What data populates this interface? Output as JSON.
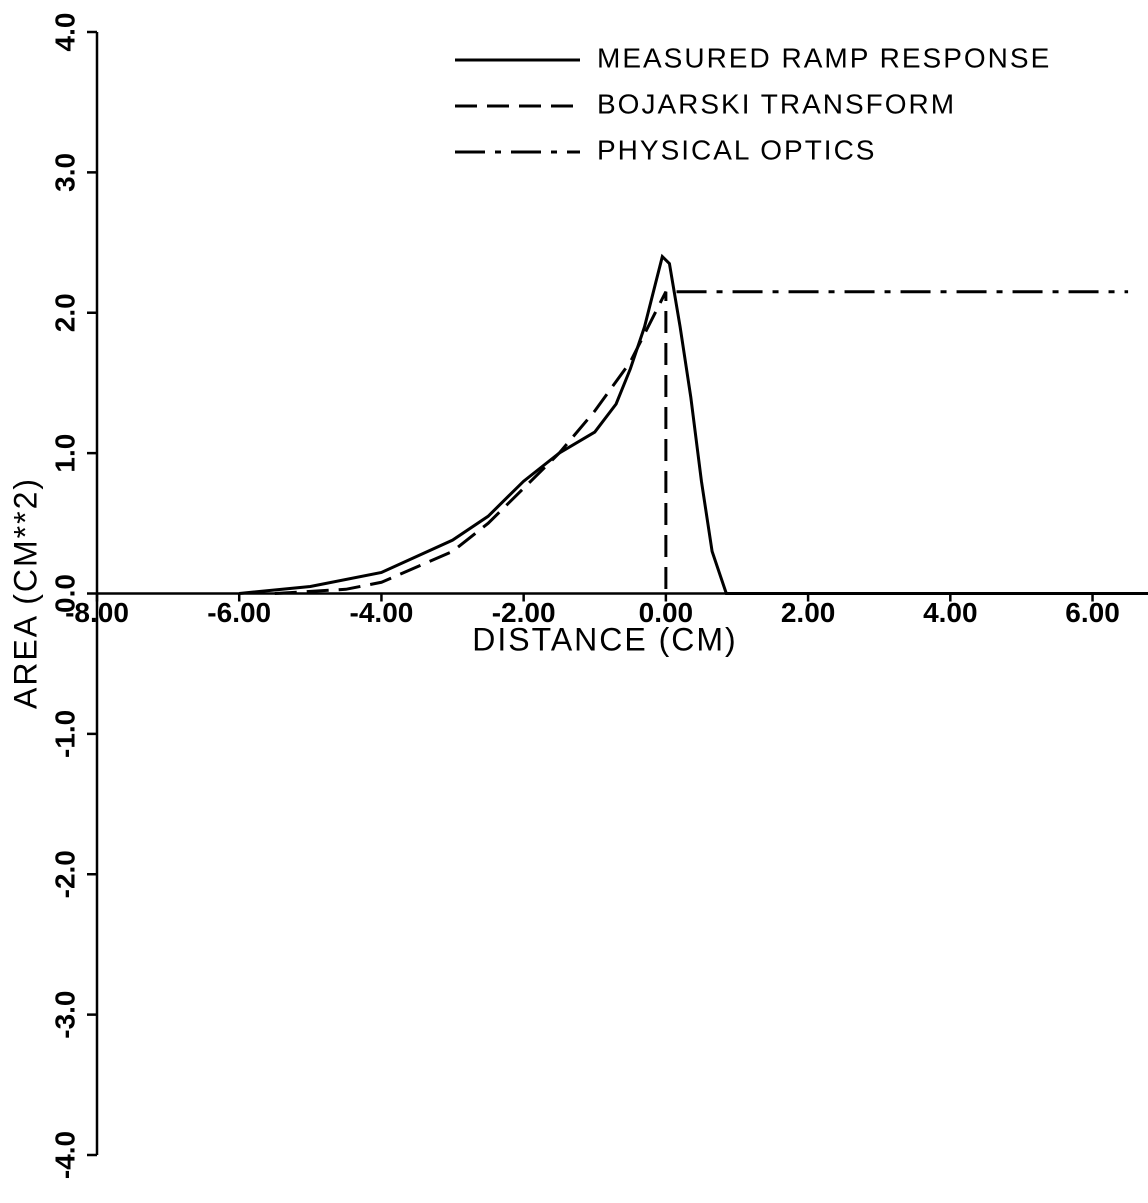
{
  "chart_data": {
    "type": "line",
    "xlabel": "DISTANCE (CM)",
    "ylabel": "AREA (CM**2)",
    "xlim": [
      -8,
      6.78
    ],
    "ylim": [
      -4,
      4
    ],
    "xticks": [
      {
        "value": -8,
        "label": "-8.00"
      },
      {
        "value": -6,
        "label": "-6.00"
      },
      {
        "value": -4,
        "label": "-4.00"
      },
      {
        "value": -2,
        "label": "-2.00"
      },
      {
        "value": 0,
        "label": "0.00"
      },
      {
        "value": 2,
        "label": "2.00"
      },
      {
        "value": 4,
        "label": "4.00"
      },
      {
        "value": 6,
        "label": "6.00"
      }
    ],
    "yticks": [
      {
        "value": -4,
        "label": "-4.0"
      },
      {
        "value": -3,
        "label": "-3.0"
      },
      {
        "value": -2,
        "label": "-2.0"
      },
      {
        "value": -1,
        "label": "-1.0"
      },
      {
        "value": 0,
        "label": "0.0"
      },
      {
        "value": 1,
        "label": "1.0"
      },
      {
        "value": 2,
        "label": "2.0"
      },
      {
        "value": 3,
        "label": "3.0"
      },
      {
        "value": 4,
        "label": "4.0"
      }
    ],
    "legend": "upper right",
    "series": [
      {
        "name": "MEASURED RAMP RESPONSE",
        "color": "#000000",
        "dash": "solid",
        "x": [
          -6,
          -5,
          -4,
          -3,
          -2.5,
          -2,
          -1.5,
          -1,
          -0.7,
          -0.5,
          -0.3,
          -0.15,
          -0.05,
          0.05,
          0.2,
          0.35,
          0.5,
          0.65,
          0.85,
          6.78
        ],
        "values": [
          0,
          0.05,
          0.15,
          0.38,
          0.55,
          0.8,
          1.0,
          1.15,
          1.35,
          1.6,
          1.9,
          2.2,
          2.4,
          2.35,
          1.9,
          1.4,
          0.8,
          0.3,
          0,
          0
        ]
      },
      {
        "name": "BOJARSKI TRANSFORM",
        "color": "#000000",
        "dash": "dashed",
        "x": [
          -5.5,
          -4.5,
          -4,
          -3,
          -2.5,
          -2,
          -1.5,
          -1,
          -0.5,
          -0.2,
          0,
          0
        ],
        "values": [
          0,
          0.03,
          0.08,
          0.3,
          0.5,
          0.75,
          1.0,
          1.3,
          1.65,
          1.95,
          2.15,
          0
        ]
      },
      {
        "name": "PHYSICAL OPTICS",
        "color": "#000000",
        "dash": "dashdot",
        "x": [
          0.15,
          6.5
        ],
        "values": [
          2.15,
          2.15
        ]
      }
    ]
  }
}
